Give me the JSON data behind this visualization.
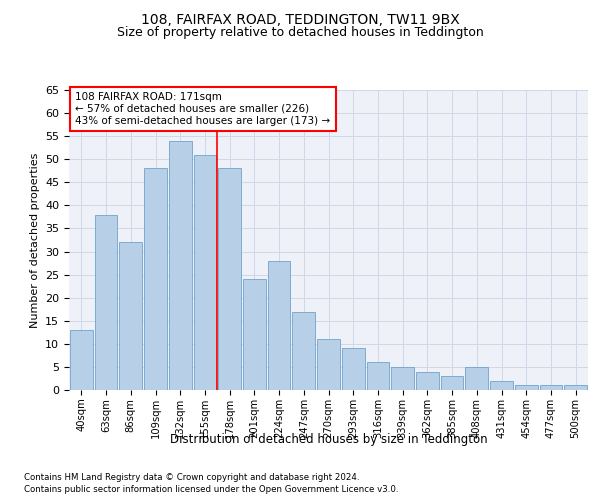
{
  "title1": "108, FAIRFAX ROAD, TEDDINGTON, TW11 9BX",
  "title2": "Size of property relative to detached houses in Teddington",
  "xlabel": "Distribution of detached houses by size in Teddington",
  "ylabel": "Number of detached properties",
  "footnote1": "Contains HM Land Registry data © Crown copyright and database right 2024.",
  "footnote2": "Contains public sector information licensed under the Open Government Licence v3.0.",
  "bar_labels": [
    "40sqm",
    "63sqm",
    "86sqm",
    "109sqm",
    "132sqm",
    "155sqm",
    "178sqm",
    "201sqm",
    "224sqm",
    "247sqm",
    "270sqm",
    "293sqm",
    "316sqm",
    "339sqm",
    "362sqm",
    "385sqm",
    "408sqm",
    "431sqm",
    "454sqm",
    "477sqm",
    "500sqm"
  ],
  "bar_values": [
    13,
    38,
    32,
    48,
    54,
    51,
    48,
    24,
    28,
    17,
    11,
    9,
    6,
    5,
    4,
    3,
    5,
    2,
    1,
    1,
    1
  ],
  "bar_color": "#b8cfe8",
  "bar_edgecolor": "#6fa3cc",
  "grid_color": "#d0d8e8",
  "background_color": "#eef2f8",
  "vline_color": "red",
  "vline_x_index": 6,
  "annotation_text": "108 FAIRFAX ROAD: 171sqm\n← 57% of detached houses are smaller (226)\n43% of semi-detached houses are larger (173) →",
  "annotation_box_color": "white",
  "annotation_box_edgecolor": "red",
  "ylim": [
    0,
    65
  ],
  "yticks": [
    0,
    5,
    10,
    15,
    20,
    25,
    30,
    35,
    40,
    45,
    50,
    55,
    60,
    65
  ]
}
